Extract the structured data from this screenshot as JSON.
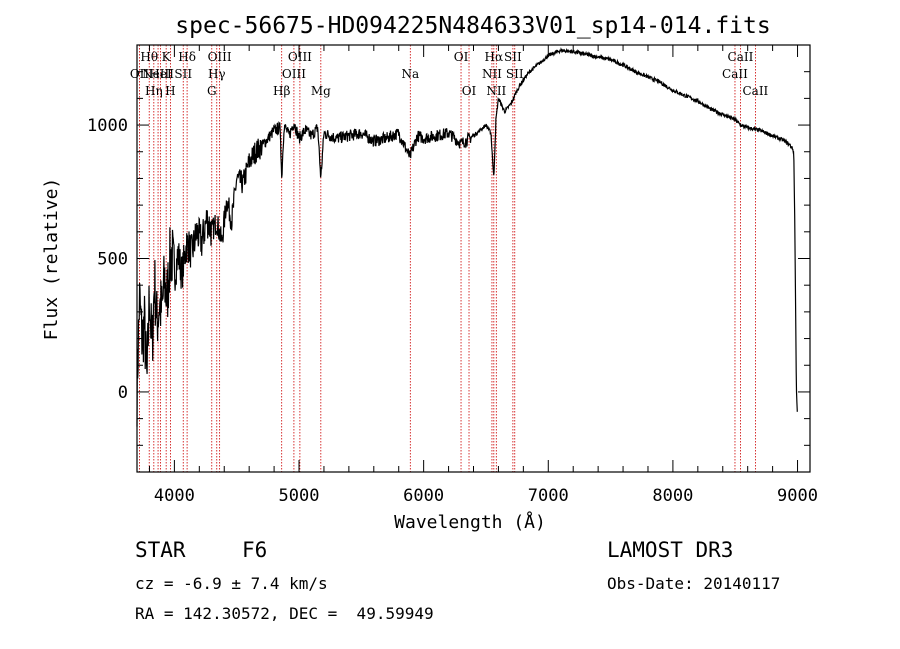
{
  "chart_data": {
    "type": "line",
    "title": "spec-56675-HD094225N484633V01_sp14-014.fits",
    "xlabel": "Wavelength (Å)",
    "ylabel": "Flux (relative)",
    "xlim": [
      3700,
      9100
    ],
    "ylim": [
      -300,
      1300
    ],
    "xticks": [
      4000,
      5000,
      6000,
      7000,
      8000,
      9000
    ],
    "xtick_labels": [
      "4000",
      "5000",
      "6000",
      "7000",
      "8000",
      "9000"
    ],
    "yticks": [
      0,
      500,
      1000
    ],
    "ytick_labels": [
      "0",
      "500",
      "1000"
    ],
    "x_minor_step": 200,
    "y_minor_step": 100,
    "series": [
      {
        "name": "spectrum",
        "x": [
          3700,
          3720,
          3740,
          3760,
          3780,
          3800,
          3820,
          3840,
          3860,
          3880,
          3900,
          3920,
          3940,
          3960,
          3980,
          4000,
          4030,
          4060,
          4100,
          4140,
          4180,
          4220,
          4260,
          4300,
          4340,
          4380,
          4420,
          4460,
          4500,
          4550,
          4600,
          4650,
          4700,
          4750,
          4800,
          4850,
          4861,
          4880,
          4920,
          4960,
          5000,
          5050,
          5100,
          5150,
          5175,
          5200,
          5250,
          5300,
          5400,
          5500,
          5600,
          5700,
          5800,
          5890,
          5950,
          6000,
          6100,
          6200,
          6300,
          6400,
          6450,
          6500,
          6540,
          6563,
          6580,
          6600,
          6650,
          6700,
          6750,
          6800,
          6850,
          6900,
          6950,
          7000,
          7050,
          7100,
          7200,
          7300,
          7400,
          7500,
          7600,
          7700,
          7800,
          7900,
          8000,
          8100,
          8200,
          8300,
          8400,
          8500,
          8542,
          8600,
          8700,
          8800,
          8900,
          8950,
          8970,
          8980,
          8990,
          9000
        ],
        "y": [
          0,
          350,
          200,
          250,
          30,
          380,
          150,
          420,
          260,
          330,
          300,
          420,
          340,
          480,
          520,
          430,
          520,
          440,
          560,
          520,
          600,
          560,
          650,
          600,
          640,
          560,
          720,
          640,
          800,
          780,
          860,
          900,
          920,
          950,
          980,
          990,
          800,
          1000,
          960,
          1010,
          950,
          980,
          960,
          990,
          800,
          970,
          960,
          950,
          960,
          970,
          940,
          950,
          970,
          880,
          960,
          950,
          960,
          970,
          930,
          960,
          980,
          1000,
          970,
          800,
          1020,
          1100,
          1050,
          1080,
          1130,
          1170,
          1200,
          1220,
          1240,
          1260,
          1270,
          1280,
          1275,
          1265,
          1255,
          1245,
          1225,
          1200,
          1180,
          1160,
          1130,
          1110,
          1090,
          1060,
          1040,
          1020,
          1000,
          990,
          980,
          960,
          940,
          920,
          900,
          550,
          30,
          -100
        ]
      }
    ],
    "line_markers": [
      {
        "wave": 3720,
        "label": "OII",
        "row": 2
      },
      {
        "wave": 3798,
        "label": "Hθ",
        "row": 1
      },
      {
        "wave": 3835,
        "label": "Hη",
        "row": 3
      },
      {
        "wave": 3869,
        "label": "NeIII",
        "row": 2
      },
      {
        "wave": 3889,
        "label": "HeI",
        "row": 2
      },
      {
        "wave": 3934,
        "label": "K",
        "row": 1
      },
      {
        "wave": 3968,
        "label": "H",
        "row": 3
      },
      {
        "wave": 4071,
        "label": "SII",
        "row": 2
      },
      {
        "wave": 4102,
        "label": "Hδ",
        "row": 1
      },
      {
        "wave": 4300,
        "label": "G",
        "row": 3
      },
      {
        "wave": 4340,
        "label": "Hγ",
        "row": 2
      },
      {
        "wave": 4363,
        "label": "OIII",
        "row": 1
      },
      {
        "wave": 4861,
        "label": "Hβ",
        "row": 3
      },
      {
        "wave": 4959,
        "label": "OIII",
        "row": 2
      },
      {
        "wave": 5007,
        "label": "OIII",
        "row": 1
      },
      {
        "wave": 5175,
        "label": "Mg",
        "row": 3
      },
      {
        "wave": 5893,
        "label": "Na",
        "row": 2
      },
      {
        "wave": 6300,
        "label": "OI",
        "row": 1
      },
      {
        "wave": 6364,
        "label": "OI",
        "row": 3
      },
      {
        "wave": 6548,
        "label": "NII",
        "row": 2
      },
      {
        "wave": 6563,
        "label": "Hα",
        "row": 1
      },
      {
        "wave": 6583,
        "label": "NII",
        "row": 3
      },
      {
        "wave": 6716,
        "label": "SII",
        "row": 1
      },
      {
        "wave": 6731,
        "label": "SII",
        "row": 2
      },
      {
        "wave": 8498,
        "label": "CaII",
        "row": 2
      },
      {
        "wave": 8542,
        "label": "CaII",
        "row": 1
      },
      {
        "wave": 8662,
        "label": "CaII",
        "row": 3
      }
    ]
  },
  "info": {
    "object_type": "STAR",
    "subclass": "F6",
    "survey": "LAMOST DR3",
    "velocity": "cz = -6.9 ± 7.4 km/s",
    "obs_date": "Obs-Date: 20140117",
    "coords": "RA = 142.30572, DEC =  49.59949"
  },
  "colors": {
    "line_marker": "#cc0000",
    "spectrum": "#000000",
    "axes": "#000000"
  }
}
